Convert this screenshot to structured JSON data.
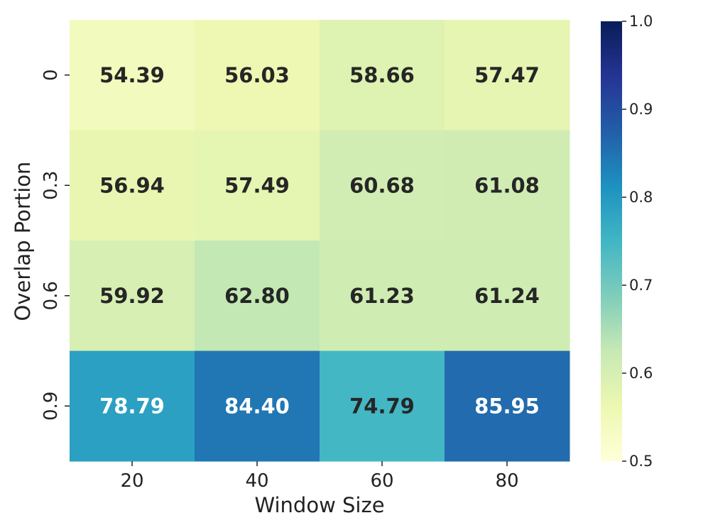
{
  "chart_data": {
    "type": "heatmap",
    "title": "",
    "xlabel": "Window Size",
    "ylabel": "Overlap Portion",
    "x_categories": [
      "20",
      "40",
      "60",
      "80"
    ],
    "y_categories": [
      "0",
      "0.3",
      "0.6",
      "0.9"
    ],
    "values": [
      [
        54.39,
        56.03,
        58.66,
        57.47
      ],
      [
        56.94,
        57.49,
        60.68,
        61.08
      ],
      [
        59.92,
        62.8,
        61.23,
        61.24
      ],
      [
        78.79,
        84.4,
        74.79,
        85.95
      ]
    ],
    "value_labels": [
      [
        "54.39",
        "56.03",
        "58.66",
        "57.47"
      ],
      [
        "56.94",
        "57.49",
        "60.68",
        "61.08"
      ],
      [
        "59.92",
        "62.80",
        "61.23",
        "61.24"
      ],
      [
        "78.79",
        "84.40",
        "74.79",
        "85.95"
      ]
    ],
    "colormap": "YlGnBu",
    "colorbar": {
      "range": [
        0.5,
        1.0
      ],
      "ticks": [
        0.5,
        0.6,
        0.7,
        0.8,
        0.9,
        1.0
      ],
      "tick_labels": [
        "0.5",
        "0.6",
        "0.7",
        "0.8",
        "0.9",
        "1.0"
      ],
      "placement": "right"
    },
    "annotation_colors": {
      "dark": "#262626",
      "light": "#ffffff"
    },
    "grid": false
  }
}
